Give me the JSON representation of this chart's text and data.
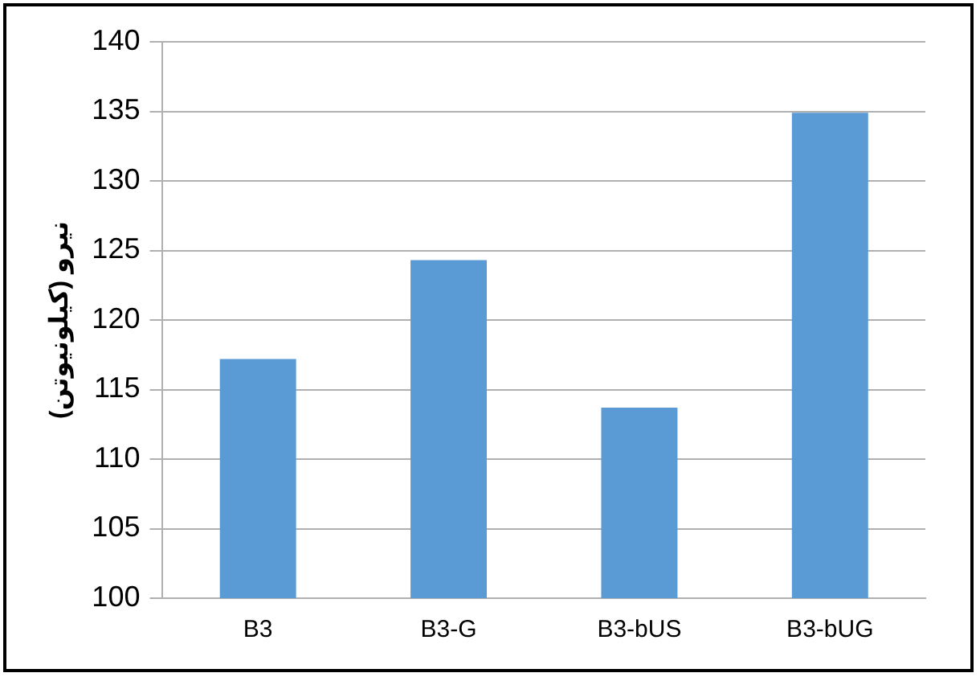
{
  "chart_data": {
    "type": "bar",
    "ylabel": "نیرو (کیلونیوتن)",
    "categories": [
      "B3",
      "B3-G",
      "B3-bUS",
      "B3-bUG"
    ],
    "values": [
      117.2,
      124.3,
      113.7,
      134.9
    ],
    "color": "#5b9bd5",
    "ylim": [
      100,
      140
    ],
    "yticks": [
      100,
      105,
      110,
      115,
      120,
      125,
      130,
      135,
      140
    ],
    "grid": "y",
    "legend": false
  }
}
